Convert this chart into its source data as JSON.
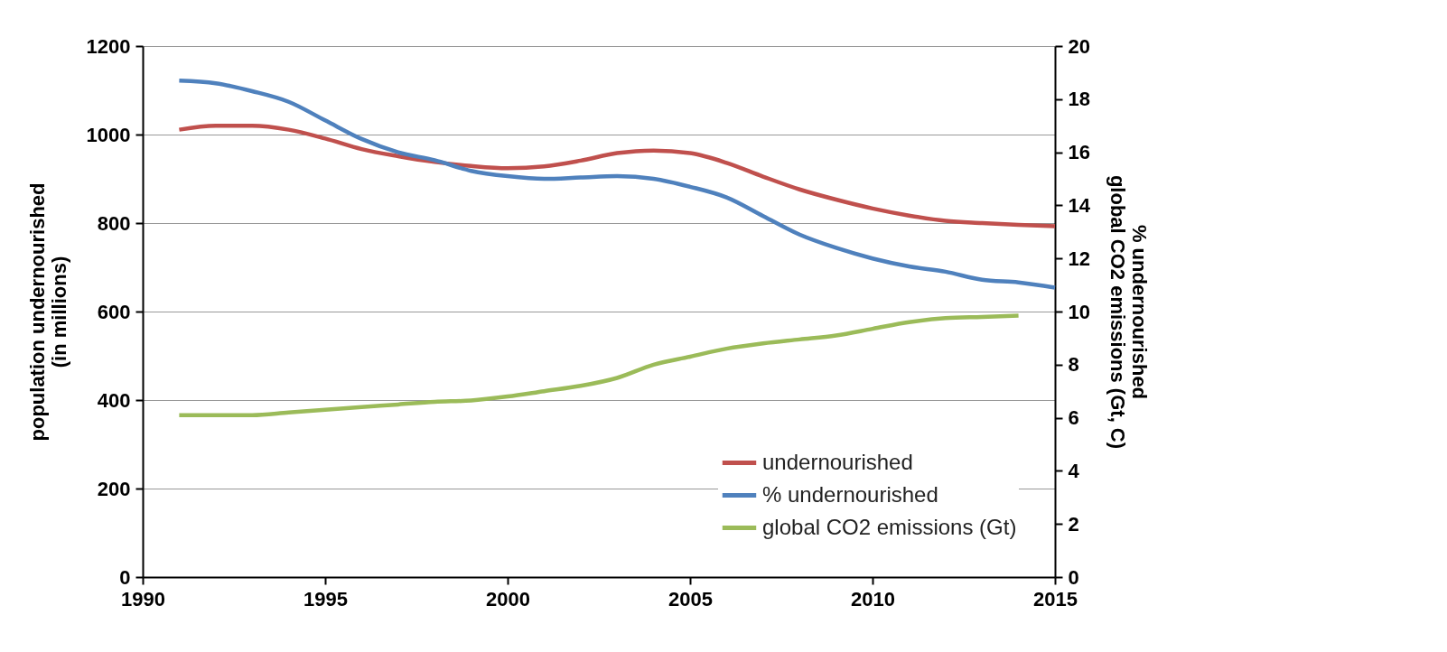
{
  "chart_data": {
    "type": "line",
    "x": [
      1991,
      1992,
      1993,
      1994,
      1995,
      1996,
      1997,
      1998,
      1999,
      2000,
      2001,
      2002,
      2003,
      2004,
      2005,
      2006,
      2007,
      2008,
      2009,
      2010,
      2011,
      2012,
      2013,
      2014,
      2015
    ],
    "xlim": [
      1990,
      2015
    ],
    "xticks": [
      1990,
      1995,
      2000,
      2005,
      2010,
      2015
    ],
    "ylim": [
      0,
      1200
    ],
    "yticks": [
      0,
      200,
      400,
      600,
      800,
      1000,
      1200
    ],
    "y2lim": [
      0,
      20
    ],
    "y2ticks": [
      0,
      2,
      4,
      6,
      8,
      10,
      12,
      14,
      16,
      18,
      20
    ],
    "ylabel": "population  undernourished\n(in millions)",
    "y2label": "% undernourished\nglobal CO2 emissions (Gt, C)",
    "grid": "y",
    "legend": "bottom right",
    "marker": "none",
    "line_style": "solid",
    "series": [
      {
        "name": "undernourished",
        "color": "#c0504d",
        "values": [
          1011,
          1020,
          1020,
          1011,
          991,
          967,
          951,
          938,
          929,
          924,
          928,
          941,
          958,
          964,
          958,
          936,
          905,
          876,
          853,
          833,
          817,
          805,
          800,
          796,
          793
        ]
      },
      {
        "name": "% undernourished",
        "color": "#4f81bd",
        "axis": "y2",
        "values": [
          18.7,
          18.6,
          18.3,
          17.9,
          17.2,
          16.5,
          16.0,
          15.7,
          15.3,
          15.1,
          15.0,
          15.05,
          15.1,
          15.0,
          14.7,
          14.3,
          13.6,
          12.9,
          12.4,
          12.0,
          11.7,
          11.5,
          11.2,
          11.1,
          10.9
        ]
      },
      {
        "name": "global CO2 emissions (Gt)",
        "color": "#9bbb59",
        "axis": "y2",
        "values": [
          6.1,
          6.1,
          6.1,
          6.2,
          6.3,
          6.4,
          6.5,
          6.6,
          6.65,
          6.8,
          7.0,
          7.2,
          7.5,
          8.0,
          8.3,
          8.6,
          8.8,
          8.95,
          9.1,
          9.35,
          9.6,
          9.75,
          9.8,
          9.85,
          null
        ]
      }
    ]
  }
}
